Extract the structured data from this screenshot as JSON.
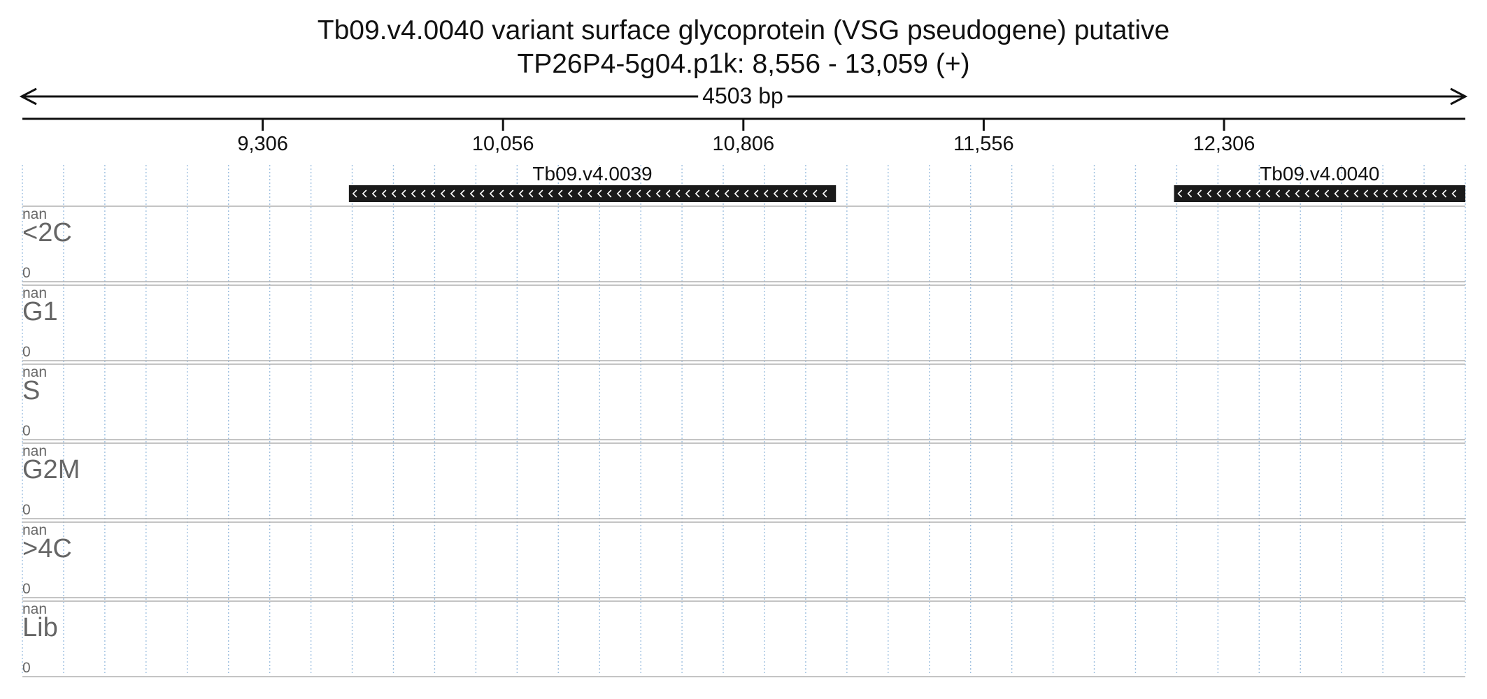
{
  "header": {
    "title": "Tb09.v4.0040  variant surface glycoprotein (VSG  pseudogene)  putative",
    "location": "TP26P4-5g04.p1k: 8,556 - 13,059 (+)"
  },
  "ruler": {
    "span_label": "4503 bp",
    "start": 8556,
    "end": 13059,
    "ticks": [
      {
        "value": 9306,
        "label": "9,306"
      },
      {
        "value": 10056,
        "label": "10,056"
      },
      {
        "value": 10806,
        "label": "10,806"
      },
      {
        "value": 11556,
        "label": "11,556"
      },
      {
        "value": 12306,
        "label": "12,306"
      }
    ]
  },
  "genes": [
    {
      "name": "Tb09.v4.0039",
      "start": 9575,
      "end": 11095,
      "strand": "-"
    },
    {
      "name": "Tb09.v4.0040",
      "start": 12150,
      "end": 13059,
      "strand": "-"
    }
  ],
  "tracks": [
    {
      "label": "<2C",
      "max": "nan",
      "min": "0"
    },
    {
      "label": "G1",
      "max": "nan",
      "min": "0"
    },
    {
      "label": "S",
      "max": "nan",
      "min": "0"
    },
    {
      "label": "G2M",
      "max": "nan",
      "min": "0"
    },
    {
      "label": ">4C",
      "max": "nan",
      "min": "0"
    },
    {
      "label": "Lib",
      "max": "nan",
      "min": "0"
    }
  ],
  "colors": {
    "gene_fill": "#1a1a1a",
    "grid": "#9fc0e0",
    "track_divider": "#b0b0b0",
    "track_label": "#666666"
  }
}
